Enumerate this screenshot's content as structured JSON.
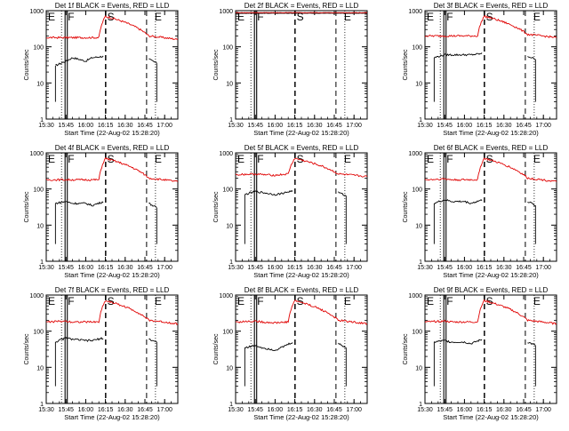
{
  "colors": {
    "events": "#000000",
    "lld": "#e00000",
    "axis": "#000000"
  },
  "chart_data": [
    {
      "type": "line",
      "title": "Det 1f BLACK = Events, RED = LLD",
      "xlabel": "Start Time (22-Aug-02 15:28:20)",
      "ylabel": "Counts/sec",
      "yscale": "log",
      "ylim": [
        1,
        1000
      ],
      "xlim": [
        "15:30",
        "17:10"
      ],
      "x_ticks": [
        "15:30",
        "15:45",
        "16:00",
        "16:15",
        "16:30",
        "16:45",
        "17:00"
      ],
      "y_ticks": [
        "1",
        "10",
        "100",
        "1000"
      ],
      "event_markers": [
        {
          "label": "E",
          "time": "15:30"
        },
        {
          "label": "F",
          "time": "15:45"
        },
        {
          "label": "S",
          "time": "16:15"
        },
        {
          "label": "E",
          "time": "16:51"
        }
      ],
      "series": [
        {
          "name": "Events",
          "color": "black",
          "x": [
            "15:37",
            "15:45",
            "15:50",
            "16:00",
            "16:05",
            "16:14",
            "16:48",
            "16:54"
          ],
          "values": [
            30,
            40,
            50,
            40,
            50,
            55,
            45,
            35
          ]
        },
        {
          "name": "LLD",
          "color": "red",
          "x": [
            "15:30",
            "15:45",
            "15:50",
            "16:00",
            "16:10",
            "16:15",
            "16:48",
            "17:10"
          ],
          "values": [
            180,
            180,
            180,
            180,
            180,
            700,
            200,
            160
          ]
        }
      ]
    },
    {
      "type": "line",
      "title": "Det 2f BLACK = Events, RED = LLD",
      "xlabel": "Start Time (22-Aug-02 15:28:20)",
      "ylabel": "Counts/sec",
      "yscale": "log",
      "ylim": [
        1,
        1000
      ],
      "xlim": [
        "15:30",
        "17:10"
      ],
      "x_ticks": [
        "15:30",
        "15:45",
        "16:00",
        "16:15",
        "16:30",
        "16:45",
        "17:00"
      ],
      "y_ticks": [
        "1",
        "10",
        "100",
        "1000"
      ],
      "event_markers": [
        {
          "label": "E",
          "time": "15:30"
        },
        {
          "label": "F",
          "time": "15:45"
        },
        {
          "label": "S",
          "time": "16:15"
        },
        {
          "label": "E",
          "time": "16:51"
        }
      ],
      "series": [
        {
          "name": "Events",
          "color": "black",
          "x": [
            "15:30",
            "15:45",
            "16:00",
            "16:14",
            "16:48",
            "17:10"
          ],
          "values": [
            850,
            850,
            850,
            850,
            850,
            850
          ]
        },
        {
          "name": "LLD",
          "color": "red",
          "x": [
            "15:30",
            "15:45",
            "16:00",
            "16:14",
            "16:48",
            "17:10"
          ],
          "values": [
            880,
            880,
            880,
            880,
            880,
            880
          ]
        }
      ]
    },
    {
      "type": "line",
      "title": "Det 3f BLACK = Events, RED = LLD",
      "xlabel": "Start Time (22-Aug-02 15:28:20)",
      "ylabel": "Counts/sec",
      "yscale": "log",
      "ylim": [
        1,
        1000
      ],
      "xlim": [
        "15:30",
        "17:10"
      ],
      "x_ticks": [
        "15:30",
        "15:45",
        "16:00",
        "16:15",
        "16:30",
        "16:45",
        "17:00"
      ],
      "y_ticks": [
        "1",
        "10",
        "100",
        "1000"
      ],
      "event_markers": [
        {
          "label": "E",
          "time": "15:30"
        },
        {
          "label": "F",
          "time": "15:45"
        },
        {
          "label": "S",
          "time": "16:15"
        },
        {
          "label": "E",
          "time": "16:51"
        }
      ],
      "series": [
        {
          "name": "Events",
          "color": "black",
          "x": [
            "15:37",
            "15:45",
            "15:50",
            "16:00",
            "16:05",
            "16:14",
            "16:48",
            "16:54"
          ],
          "values": [
            50,
            60,
            60,
            60,
            60,
            65,
            55,
            45
          ]
        },
        {
          "name": "LLD",
          "color": "red",
          "x": [
            "15:30",
            "15:45",
            "15:50",
            "16:00",
            "16:10",
            "16:15",
            "16:48",
            "17:10"
          ],
          "values": [
            200,
            200,
            200,
            200,
            200,
            700,
            220,
            180
          ]
        }
      ]
    },
    {
      "type": "line",
      "title": "Det 4f BLACK = Events, RED = LLD",
      "xlabel": "Start Time (22-Aug-02 15:28:20)",
      "ylabel": "Counts/sec",
      "yscale": "log",
      "ylim": [
        1,
        1000
      ],
      "xlim": [
        "15:30",
        "17:10"
      ],
      "x_ticks": [
        "15:30",
        "15:45",
        "16:00",
        "16:15",
        "16:30",
        "16:45",
        "17:00"
      ],
      "y_ticks": [
        "1",
        "10",
        "100",
        "1000"
      ],
      "event_markers": [
        {
          "label": "E",
          "time": "15:30"
        },
        {
          "label": "F",
          "time": "15:45"
        },
        {
          "label": "S",
          "time": "16:15"
        },
        {
          "label": "E",
          "time": "16:51"
        }
      ],
      "series": [
        {
          "name": "Events",
          "color": "black",
          "x": [
            "15:37",
            "15:45",
            "15:50",
            "16:00",
            "16:05",
            "16:14",
            "16:48",
            "16:54"
          ],
          "values": [
            40,
            45,
            40,
            40,
            35,
            45,
            40,
            30
          ]
        },
        {
          "name": "LLD",
          "color": "red",
          "x": [
            "15:30",
            "15:45",
            "15:50",
            "16:00",
            "16:10",
            "16:15",
            "16:48",
            "17:10"
          ],
          "values": [
            180,
            180,
            180,
            180,
            180,
            700,
            200,
            160
          ]
        }
      ]
    },
    {
      "type": "line",
      "title": "Det 5f BLACK = Events, RED = LLD",
      "xlabel": "Start Time (22-Aug-02 15:28:20)",
      "ylabel": "Counts/sec",
      "yscale": "log",
      "ylim": [
        1,
        1000
      ],
      "xlim": [
        "15:30",
        "17:10"
      ],
      "x_ticks": [
        "15:30",
        "15:45",
        "16:00",
        "16:15",
        "16:30",
        "16:45",
        "17:00"
      ],
      "y_ticks": [
        "1",
        "10",
        "100",
        "1000"
      ],
      "event_markers": [
        {
          "label": "E",
          "time": "15:30"
        },
        {
          "label": "F",
          "time": "15:45"
        },
        {
          "label": "S",
          "time": "16:15"
        },
        {
          "label": "E",
          "time": "16:51"
        }
      ],
      "series": [
        {
          "name": "Events",
          "color": "black",
          "x": [
            "15:37",
            "15:45",
            "15:50",
            "16:00",
            "16:05",
            "16:14",
            "16:48",
            "16:54"
          ],
          "values": [
            70,
            85,
            80,
            70,
            75,
            90,
            80,
            65
          ]
        },
        {
          "name": "LLD",
          "color": "red",
          "x": [
            "15:30",
            "15:45",
            "15:50",
            "16:00",
            "16:10",
            "16:15",
            "16:48",
            "17:10"
          ],
          "values": [
            250,
            260,
            250,
            240,
            260,
            700,
            260,
            220
          ]
        }
      ]
    },
    {
      "type": "line",
      "title": "Det 6f BLACK = Events, RED = LLD",
      "xlabel": "Start Time (22-Aug-02 15:28:20)",
      "ylabel": "Counts/sec",
      "yscale": "log",
      "ylim": [
        1,
        1000
      ],
      "xlim": [
        "15:30",
        "17:10"
      ],
      "x_ticks": [
        "15:30",
        "15:45",
        "16:00",
        "16:15",
        "16:30",
        "16:45",
        "17:00"
      ],
      "y_ticks": [
        "1",
        "10",
        "100",
        "1000"
      ],
      "event_markers": [
        {
          "label": "E",
          "time": "15:30"
        },
        {
          "label": "F",
          "time": "15:45"
        },
        {
          "label": "S",
          "time": "16:15"
        },
        {
          "label": "E",
          "time": "16:51"
        }
      ],
      "series": [
        {
          "name": "Events",
          "color": "black",
          "x": [
            "15:37",
            "15:45",
            "15:50",
            "16:00",
            "16:05",
            "16:14",
            "16:48",
            "16:54"
          ],
          "values": [
            40,
            50,
            45,
            45,
            40,
            50,
            45,
            35
          ]
        },
        {
          "name": "LLD",
          "color": "red",
          "x": [
            "15:30",
            "15:45",
            "15:50",
            "16:00",
            "16:10",
            "16:15",
            "16:48",
            "17:10"
          ],
          "values": [
            180,
            190,
            180,
            180,
            180,
            700,
            200,
            160
          ]
        }
      ]
    },
    {
      "type": "line",
      "title": "Det 7f BLACK = Events, RED = LLD",
      "xlabel": "Start Time (22-Aug-02 15:28:20)",
      "ylabel": "Counts/sec",
      "yscale": "log",
      "ylim": [
        1,
        1000
      ],
      "xlim": [
        "15:30",
        "17:10"
      ],
      "x_ticks": [
        "15:30",
        "15:45",
        "16:00",
        "16:15",
        "16:30",
        "16:45",
        "17:00"
      ],
      "y_ticks": [
        "1",
        "10",
        "100",
        "1000"
      ],
      "event_markers": [
        {
          "label": "E",
          "time": "15:30"
        },
        {
          "label": "F",
          "time": "15:45"
        },
        {
          "label": "S",
          "time": "16:15"
        },
        {
          "label": "E",
          "time": "16:51"
        }
      ],
      "series": [
        {
          "name": "Events",
          "color": "black",
          "x": [
            "15:37",
            "15:45",
            "15:50",
            "16:00",
            "16:05",
            "16:14",
            "16:48",
            "16:54"
          ],
          "values": [
            50,
            65,
            60,
            55,
            55,
            65,
            60,
            50
          ]
        },
        {
          "name": "LLD",
          "color": "red",
          "x": [
            "15:30",
            "15:45",
            "15:50",
            "16:00",
            "16:10",
            "16:15",
            "16:48",
            "17:10"
          ],
          "values": [
            180,
            190,
            180,
            180,
            180,
            700,
            200,
            160
          ]
        }
      ]
    },
    {
      "type": "line",
      "title": "Det 8f BLACK = Events, RED = LLD",
      "xlabel": "Start Time (22-Aug-02 15:28:20)",
      "ylabel": "Counts/sec",
      "yscale": "log",
      "ylim": [
        1,
        1000
      ],
      "xlim": [
        "15:30",
        "17:10"
      ],
      "x_ticks": [
        "15:30",
        "15:45",
        "16:00",
        "16:15",
        "16:30",
        "16:45",
        "17:00"
      ],
      "y_ticks": [
        "1",
        "10",
        "100",
        "1000"
      ],
      "event_markers": [
        {
          "label": "E",
          "time": "15:30"
        },
        {
          "label": "F",
          "time": "15:45"
        },
        {
          "label": "S",
          "time": "16:15"
        },
        {
          "label": "E",
          "time": "16:51"
        }
      ],
      "series": [
        {
          "name": "Events",
          "color": "black",
          "x": [
            "15:37",
            "15:45",
            "15:50",
            "16:00",
            "16:05",
            "16:14",
            "16:48",
            "16:54"
          ],
          "values": [
            35,
            40,
            35,
            30,
            35,
            50,
            45,
            35
          ]
        },
        {
          "name": "LLD",
          "color": "red",
          "x": [
            "15:30",
            "15:45",
            "15:50",
            "16:00",
            "16:10",
            "16:15",
            "16:48",
            "17:10"
          ],
          "values": [
            180,
            190,
            180,
            170,
            180,
            700,
            200,
            160
          ]
        }
      ]
    },
    {
      "type": "line",
      "title": "Det 9f BLACK = Events, RED = LLD",
      "xlabel": "Start Time (22-Aug-02 15:28:20)",
      "ylabel": "Counts/sec",
      "yscale": "log",
      "ylim": [
        1,
        1000
      ],
      "xlim": [
        "15:30",
        "17:10"
      ],
      "x_ticks": [
        "15:30",
        "15:45",
        "16:00",
        "16:15",
        "16:30",
        "16:45",
        "17:00"
      ],
      "y_ticks": [
        "1",
        "10",
        "100",
        "1000"
      ],
      "event_markers": [
        {
          "label": "E",
          "time": "15:30"
        },
        {
          "label": "F",
          "time": "15:45"
        },
        {
          "label": "S",
          "time": "16:15"
        },
        {
          "label": "E",
          "time": "16:51"
        }
      ],
      "series": [
        {
          "name": "Events",
          "color": "black",
          "x": [
            "15:37",
            "15:45",
            "15:50",
            "16:00",
            "16:05",
            "16:14",
            "16:48",
            "16:54"
          ],
          "values": [
            50,
            55,
            50,
            50,
            45,
            60,
            50,
            40
          ]
        },
        {
          "name": "LLD",
          "color": "red",
          "x": [
            "15:30",
            "15:45",
            "15:50",
            "16:00",
            "16:10",
            "16:15",
            "16:48",
            "17:10"
          ],
          "values": [
            180,
            190,
            180,
            180,
            180,
            700,
            200,
            160
          ]
        }
      ]
    }
  ]
}
